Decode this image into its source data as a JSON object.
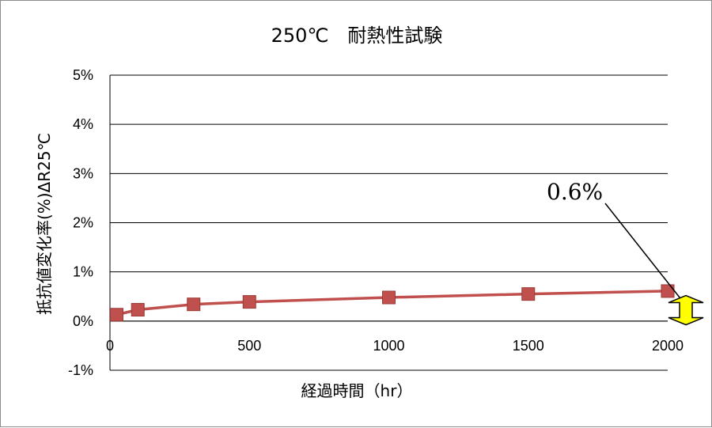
{
  "chart_data": {
    "type": "line",
    "title": "250℃　耐熱性試験",
    "xlabel": "経過時間（hr）",
    "ylabel": "抵抗値変化率(%)ΔR25℃",
    "xlim": [
      0,
      2000
    ],
    "ylim": [
      -1,
      5
    ],
    "x_ticks": [
      "0",
      "500",
      "1000",
      "1500",
      "2000"
    ],
    "y_ticks": [
      "-1%",
      "0%",
      "1%",
      "2%",
      "3%",
      "4%",
      "5%"
    ],
    "grid": true,
    "series": [
      {
        "x": [
          24,
          100,
          300,
          500,
          1000,
          1500,
          2000
        ],
        "values": [
          0.13,
          0.23,
          0.34,
          0.39,
          0.48,
          0.55,
          0.61
        ],
        "color": "#c0504d",
        "marker_color": "#c0504d"
      }
    ],
    "annotations": [
      {
        "text": "0.6%",
        "x": 2000,
        "y": 0.6,
        "marker_color": "#ffff00"
      }
    ]
  }
}
